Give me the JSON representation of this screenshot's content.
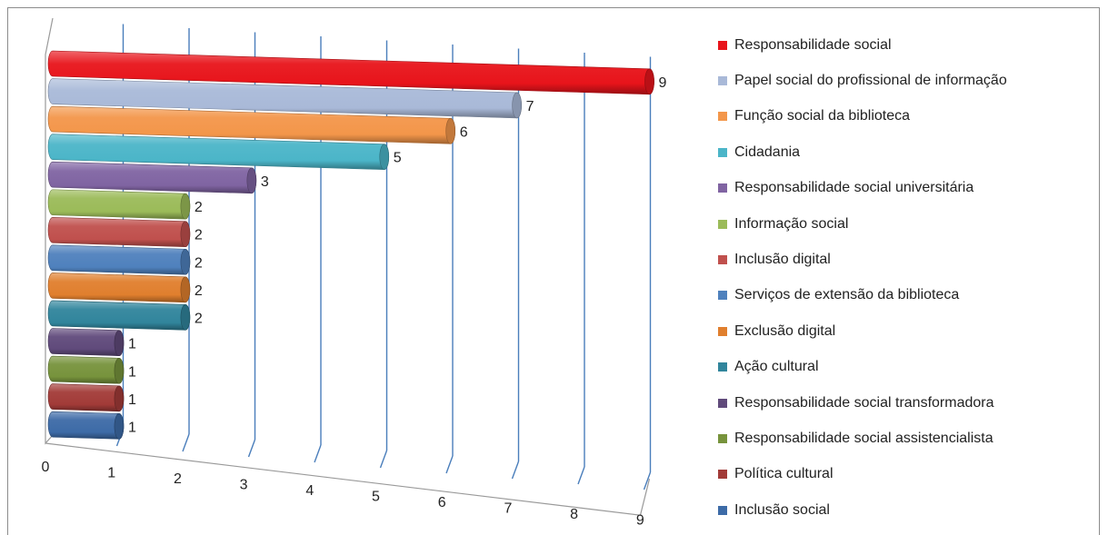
{
  "chart_data": {
    "type": "bar",
    "orientation": "horizontal",
    "style": "3d-cylinder",
    "title": "",
    "xlabel": "",
    "ylabel": "",
    "xlim": [
      0,
      9
    ],
    "x_ticks": [
      "0",
      "1",
      "2",
      "3",
      "4",
      "5",
      "6",
      "7",
      "8",
      "9"
    ],
    "grid": true,
    "legend_position": "right",
    "categories": [
      "Responsabilidade social",
      "Papel social do profissional de informação",
      "Função social da biblioteca",
      "Cidadania",
      "Responsabilidade social universitária",
      "Informação social",
      "Inclusão digital",
      "Serviços de extensão da biblioteca",
      "Exclusão digital",
      "Ação cultural",
      "Responsabilidade social transformadora",
      "Responsabilidade social assistencialista",
      "Política cultural",
      "Inclusão social"
    ],
    "values": [
      9,
      7,
      6,
      5,
      3,
      2,
      2,
      2,
      2,
      2,
      1,
      1,
      1,
      1
    ],
    "colors": [
      "#e8141b",
      "#a9b9d8",
      "#f3964a",
      "#4bb5c8",
      "#8064a2",
      "#9bbb59",
      "#c0504d",
      "#4f81bd",
      "#e07f2e",
      "#31859c",
      "#604a7b",
      "#77933c",
      "#a23b38",
      "#3d6ba7"
    ]
  }
}
